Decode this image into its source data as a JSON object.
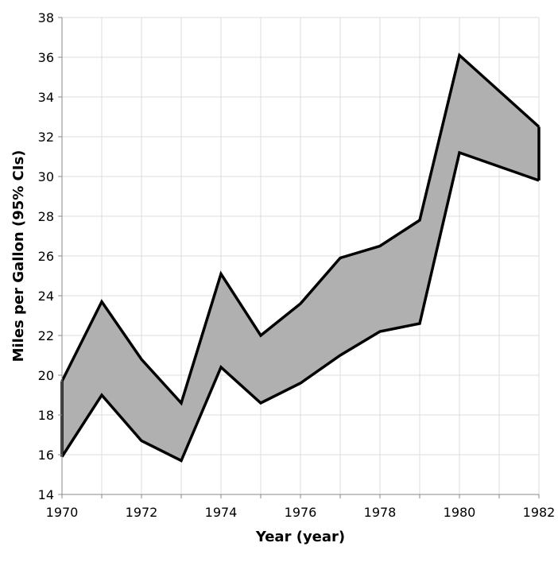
{
  "chart_data": {
    "type": "area",
    "subtype": "error-band",
    "title": "",
    "xlabel": "Year (year)",
    "ylabel": "Miles per Gallon (95% CIs)",
    "x": [
      1970,
      1971,
      1972,
      1973,
      1974,
      1975,
      1976,
      1977,
      1978,
      1979,
      1980,
      1981,
      1982
    ],
    "series": [
      {
        "lower": [
          15.9,
          19.0,
          16.7,
          15.7,
          20.4,
          18.6,
          19.6,
          21.0,
          22.2,
          22.6,
          31.2,
          30.5,
          29.8
        ],
        "upper": [
          19.7,
          23.7,
          20.8,
          18.6,
          25.1,
          22.0,
          23.6,
          25.9,
          26.5,
          27.8,
          36.1,
          34.3,
          32.5
        ]
      }
    ],
    "xlim": [
      1970,
      1982
    ],
    "ylim": [
      14,
      38
    ],
    "x_ticks": [
      1970,
      1972,
      1974,
      1976,
      1978,
      1980,
      1982
    ],
    "y_ticks": [
      14,
      16,
      18,
      20,
      22,
      24,
      26,
      28,
      30,
      32,
      34,
      36,
      38
    ],
    "grid": true,
    "colors": {
      "band_fill": "#b0b0b0",
      "band_stroke": "#000000",
      "grid": "#dddddd",
      "axis": "#888888"
    }
  }
}
